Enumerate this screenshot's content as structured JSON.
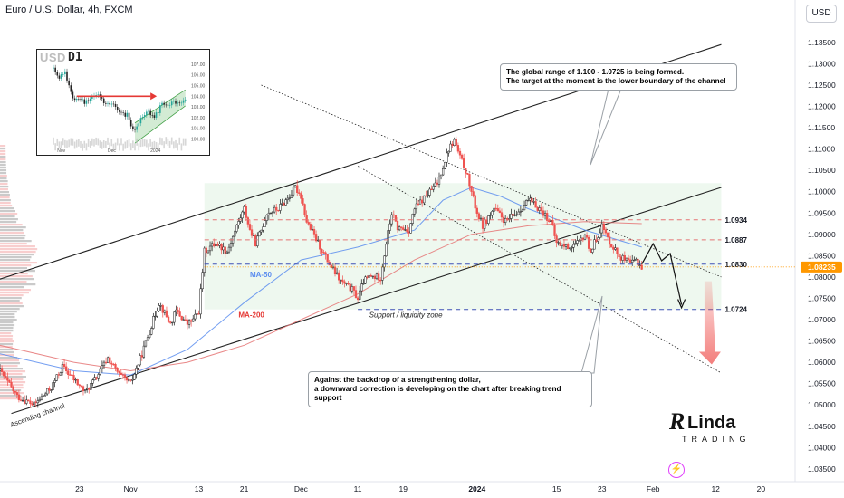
{
  "header": {
    "title": "Euro / U.S. Dollar, 4h, FXCM",
    "currency_button": "USD"
  },
  "inset": {
    "symbol": "USD",
    "timeframe": "D1",
    "price_labels": [
      "107.00",
      "106.00",
      "105.00",
      "104.00",
      "103.00",
      "102.00",
      "101.00",
      "100.00"
    ],
    "date_labels": [
      "Nov",
      "Dec",
      "2024"
    ]
  },
  "callouts": {
    "top_line1": "The global range of 1.100 - 1.0725 is being formed.",
    "top_line2": "The target at the moment is the lower boundary of the channel",
    "bottom_line1": "Against the backdrop of a strengthening dollar,",
    "bottom_line2": "a downward correction is developing on the chart after breaking trend support"
  },
  "logo": {
    "brand": "Linda",
    "sub": "TRADING",
    "brand_color": "#111111"
  },
  "colors": {
    "bull": "#26a69a",
    "bear": "#ef5350",
    "ma50": "#5b8def",
    "ma200": "#e57373",
    "zone_fill": "#e8f5e9",
    "current_price_bg": "#ff9800",
    "arrow_red": "#ef5350",
    "support_line": "#3f51b5",
    "resistance_line": "#e57373"
  },
  "chart_data": {
    "type": "candlestick",
    "title": "Euro / U.S. Dollar, 4h, FXCM",
    "y_ticks": [
      1.135,
      1.13,
      1.125,
      1.12,
      1.115,
      1.11,
      1.105,
      1.1,
      1.095,
      1.09,
      1.085,
      1.08,
      1.075,
      1.07,
      1.065,
      1.06,
      1.055,
      1.05,
      1.045,
      1.04,
      1.035
    ],
    "ylim": [
      1.032,
      1.139
    ],
    "x_ticks": [
      "23",
      "Nov",
      "13",
      "21",
      "Dec",
      "11",
      "19",
      "2024",
      "15",
      "23",
      "Feb",
      "12",
      "20"
    ],
    "x_tick_days": [
      -9,
      0,
      12,
      20,
      30,
      40,
      48,
      61,
      75,
      83,
      92,
      103,
      111
    ],
    "x_range_days": [
      -23,
      117
    ],
    "current_price": 1.08235,
    "levels": [
      {
        "value": 1.0934,
        "label": "1.0934",
        "color": "#e57373"
      },
      {
        "value": 1.0887,
        "label": "1.0887",
        "color": "#e57373"
      },
      {
        "value": 1.083,
        "label": "1.0830",
        "color": "#3f51b5"
      },
      {
        "value": 1.0724,
        "label": "1.0724",
        "color": "#3f51b5"
      }
    ],
    "price_path": [
      [
        -23,
        1.058
      ],
      [
        -20,
        1.052
      ],
      [
        -17,
        1.05
      ],
      [
        -14,
        1.054
      ],
      [
        -12,
        1.059
      ],
      [
        -10,
        1.056
      ],
      [
        -8,
        1.053
      ],
      [
        -6,
        1.0565
      ],
      [
        -4,
        1.061
      ],
      [
        -2,
        1.057
      ],
      [
        0,
        1.055
      ],
      [
        2,
        1.062
      ],
      [
        4,
        1.07
      ],
      [
        5,
        1.074
      ],
      [
        6,
        1.0715
      ],
      [
        7,
        1.069
      ],
      [
        8,
        1.072
      ],
      [
        10,
        1.069
      ],
      [
        11,
        1.07
      ],
      [
        12,
        1.072
      ],
      [
        13,
        1.086
      ],
      [
        15,
        1.088
      ],
      [
        17,
        1.086
      ],
      [
        19,
        1.093
      ],
      [
        20,
        1.096
      ],
      [
        21,
        1.091
      ],
      [
        22,
        1.088
      ],
      [
        23,
        1.091
      ],
      [
        24,
        1.095
      ],
      [
        26,
        1.096
      ],
      [
        28,
        1.099
      ],
      [
        29,
        1.101
      ],
      [
        30,
        1.099
      ],
      [
        31,
        1.093
      ],
      [
        33,
        1.088
      ],
      [
        35,
        1.083
      ],
      [
        37,
        1.079
      ],
      [
        39,
        1.077
      ],
      [
        40,
        1.075
      ],
      [
        41,
        1.079
      ],
      [
        42,
        1.08
      ],
      [
        44,
        1.08
      ],
      [
        45,
        1.088
      ],
      [
        46,
        1.095
      ],
      [
        47,
        1.0915
      ],
      [
        49,
        1.091
      ],
      [
        50,
        1.096
      ],
      [
        52,
        1.099
      ],
      [
        54,
        1.102
      ],
      [
        55,
        1.106
      ],
      [
        56,
        1.11
      ],
      [
        57,
        1.112
      ],
      [
        58,
        1.108
      ],
      [
        59,
        1.105
      ],
      [
        60,
        1.1
      ],
      [
        61,
        1.095
      ],
      [
        62,
        1.092
      ],
      [
        64,
        1.096
      ],
      [
        66,
        1.093
      ],
      [
        68,
        1.095
      ],
      [
        70,
        1.098
      ],
      [
        72,
        1.096
      ],
      [
        74,
        1.093
      ],
      [
        75,
        1.088
      ],
      [
        77,
        1.087
      ],
      [
        79,
        1.088
      ],
      [
        80,
        1.09
      ],
      [
        81,
        1.086
      ],
      [
        82,
        1.089
      ],
      [
        83,
        1.092
      ],
      [
        84,
        1.089
      ],
      [
        86,
        1.085
      ],
      [
        88,
        1.083
      ],
      [
        89,
        1.084
      ],
      [
        90,
        1.0823
      ]
    ],
    "ma50": [
      [
        -23,
        1.062
      ],
      [
        -10,
        1.058
      ],
      [
        0,
        1.057
      ],
      [
        10,
        1.063
      ],
      [
        20,
        1.074
      ],
      [
        30,
        1.084
      ],
      [
        40,
        1.087
      ],
      [
        50,
        1.091
      ],
      [
        55,
        1.098
      ],
      [
        60,
        1.101
      ],
      [
        65,
        1.099
      ],
      [
        70,
        1.096
      ],
      [
        80,
        1.091
      ],
      [
        90,
        1.087
      ]
    ],
    "ma200": [
      [
        -23,
        1.064
      ],
      [
        -10,
        1.06
      ],
      [
        0,
        1.058
      ],
      [
        10,
        1.06
      ],
      [
        20,
        1.064
      ],
      [
        30,
        1.07
      ],
      [
        40,
        1.076
      ],
      [
        50,
        1.084
      ],
      [
        60,
        1.09
      ],
      [
        70,
        1.092
      ],
      [
        80,
        1.093
      ],
      [
        90,
        1.0925
      ]
    ],
    "annotations": {
      "ma50": "MA-50",
      "ma200": "MA-200",
      "support": "Support / liquidity zone",
      "channel": "Ascending channel"
    }
  }
}
